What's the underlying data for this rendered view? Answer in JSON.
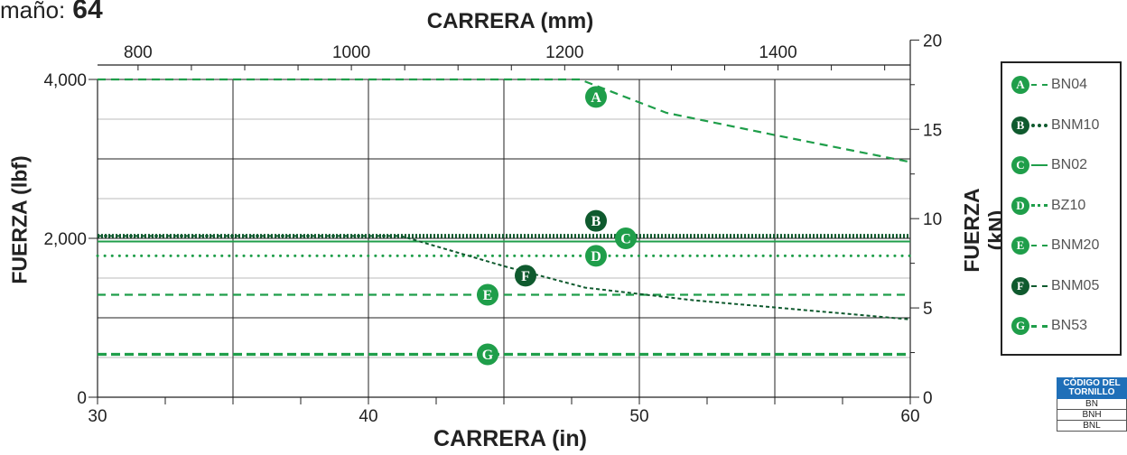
{
  "header": {
    "size_label": "maño:",
    "size_value": "64"
  },
  "chart_data": {
    "type": "line",
    "title": "",
    "xlabel_top": "CARRERA (mm)",
    "xlabel": "CARRERA (in)",
    "ylabel": "FUERZA (lbf)",
    "ylabel_right": "FUERZA (kN)",
    "x_in": {
      "min": 30,
      "max": 60,
      "ticks": [
        30,
        40,
        50,
        60
      ]
    },
    "x_mm_ticks": [
      800,
      1000,
      1200,
      1400
    ],
    "y_lbf": {
      "min": 0,
      "max": 4000,
      "ticks": [
        0,
        2000,
        4000
      ],
      "tick_labels": [
        "0",
        "2,000",
        "4,000"
      ]
    },
    "y_kn_ticks": [
      0,
      5,
      10,
      15,
      20
    ],
    "grid": true,
    "legend_position": "right",
    "series": [
      {
        "name": "BN04",
        "badge": "A",
        "color": "#1f9e4a",
        "style": "dashed",
        "x": [
          30,
          47.8,
          51,
          55,
          60
        ],
        "y": [
          4000,
          4000,
          3580,
          3300,
          2960
        ]
      },
      {
        "name": "BNM10",
        "badge": "B",
        "color": "#0f5a2e",
        "style": "dotted-heavy",
        "x": [
          30,
          60
        ],
        "y": [
          2030,
          2030
        ]
      },
      {
        "name": "BN02",
        "badge": "C",
        "color": "#1f9e4a",
        "style": "solid",
        "x": [
          30,
          60
        ],
        "y": [
          1960,
          1960
        ]
      },
      {
        "name": "BZ10",
        "badge": "D",
        "color": "#1f9e4a",
        "style": "dotted",
        "x": [
          30,
          60
        ],
        "y": [
          1780,
          1780
        ]
      },
      {
        "name": "BNM20",
        "badge": "E",
        "color": "#1f9e4a",
        "style": "dashed",
        "x": [
          30,
          60
        ],
        "y": [
          1290,
          1290
        ]
      },
      {
        "name": "BNM05",
        "badge": "F",
        "color": "#0f5a2e",
        "style": "fine-dashed",
        "x": [
          30,
          41.2,
          45,
          48,
          52,
          56,
          60
        ],
        "y": [
          2030,
          2030,
          1650,
          1380,
          1220,
          1100,
          980
        ]
      },
      {
        "name": "BN53",
        "badge": "G",
        "color": "#1f9e4a",
        "style": "dashed-heavy",
        "x": [
          30,
          60
        ],
        "y": [
          540,
          540
        ]
      }
    ],
    "annotations": [
      {
        "badge": "A",
        "x": 48.4,
        "y": 3780
      },
      {
        "badge": "B",
        "x": 48.4,
        "y": 2220
      },
      {
        "badge": "C",
        "x": 49.5,
        "y": 2000
      },
      {
        "badge": "D",
        "x": 48.4,
        "y": 1780
      },
      {
        "badge": "E",
        "x": 44.4,
        "y": 1290
      },
      {
        "badge": "F",
        "x": 45.8,
        "y": 1530
      },
      {
        "badge": "G",
        "x": 44.4,
        "y": 540
      }
    ]
  },
  "screw_table": {
    "header": "CÓDIGO DEL TORNILLO",
    "rows": [
      "BN",
      "BNH",
      "BNL"
    ]
  }
}
